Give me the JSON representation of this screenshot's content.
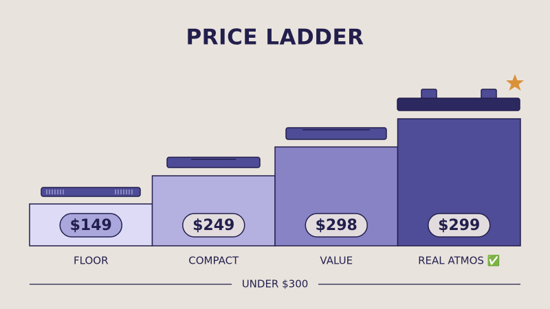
{
  "title": "PRICE LADDER",
  "steps": [
    {
      "label": "FLOOR",
      "price": "$149"
    },
    {
      "label": "COMPACT",
      "price": "$249"
    },
    {
      "label": "VALUE",
      "price": "$298"
    },
    {
      "label": "REAL ATMOS ✅",
      "price": "$299"
    }
  ],
  "footer": "UNDER $300"
}
